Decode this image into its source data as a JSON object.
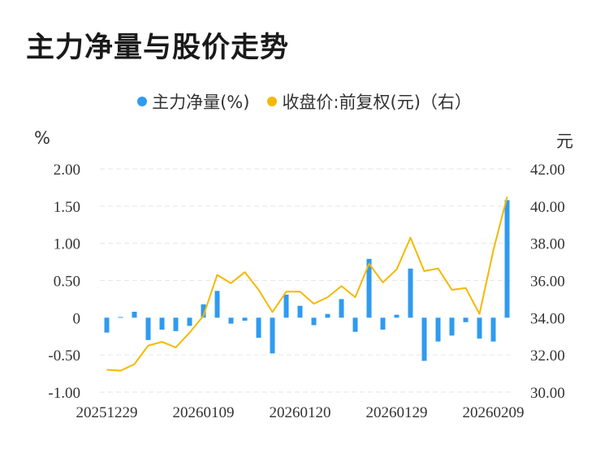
{
  "title": "主力净量与股价走势",
  "colors": {
    "bar": "#2f9bf0",
    "line": "#f5b800",
    "grid": "#e6e6e6"
  },
  "legend": [
    {
      "label": "主力净量(%)",
      "color": "#2f9bf0"
    },
    {
      "label": "收盘价:前复权(元)（右）",
      "color": "#f5b800"
    }
  ],
  "units": {
    "left": "%",
    "right": "元"
  },
  "chart_data": {
    "type": "bar",
    "title": "主力净量与股价走势",
    "grid": true,
    "legend_position": "top",
    "x_tick_labels": [
      "20251229",
      "20260109",
      "20260120",
      "20260129",
      "20260209"
    ],
    "left_axis": {
      "unit": "%",
      "ylim": [
        -1.0,
        2.0
      ],
      "ticks": [
        "2.00",
        "1.50",
        "1.00",
        "0.50",
        "0",
        "-0.50",
        "-1.00"
      ],
      "tick_values": [
        2.0,
        1.5,
        1.0,
        0.5,
        0,
        -0.5,
        -1.0
      ]
    },
    "right_axis": {
      "unit": "元",
      "ylim": [
        30.0,
        42.0
      ],
      "ticks": [
        "42.00",
        "40.00",
        "38.00",
        "36.00",
        "34.00",
        "32.00",
        "30.00"
      ],
      "tick_values": [
        42,
        40,
        38,
        36,
        34,
        32,
        30
      ]
    },
    "series": [
      {
        "name": "主力净量(%)",
        "type": "bar",
        "axis": "left",
        "values": [
          -0.2,
          0.01,
          0.08,
          -0.3,
          -0.16,
          -0.18,
          -0.11,
          0.18,
          0.36,
          -0.08,
          -0.04,
          -0.27,
          -0.48,
          0.31,
          0.16,
          -0.1,
          0.05,
          0.25,
          -0.19,
          0.79,
          -0.16,
          0.04,
          0.66,
          -0.58,
          -0.32,
          -0.24,
          -0.06,
          -0.28,
          -0.32,
          1.58
        ]
      },
      {
        "name": "收盘价:前复权(元)（右）",
        "type": "line",
        "axis": "right",
        "values": [
          31.2,
          31.15,
          31.5,
          32.5,
          32.7,
          32.4,
          33.2,
          34.1,
          36.3,
          35.85,
          36.45,
          35.5,
          34.3,
          35.4,
          35.4,
          34.75,
          35.1,
          35.7,
          35.1,
          36.9,
          35.9,
          36.6,
          38.3,
          36.5,
          36.65,
          35.5,
          35.6,
          34.2,
          37.6,
          40.5
        ]
      }
    ]
  }
}
